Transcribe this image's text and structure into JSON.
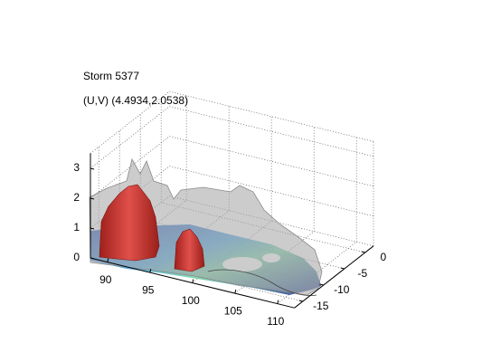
{
  "chart_data": {
    "type": "surface3d",
    "title": "Storm 5377",
    "subtitle": "(U,V) (4.4934,2.0538)",
    "xlim": [
      88,
      112
    ],
    "ylim": [
      -17,
      2
    ],
    "zlim": [
      0,
      3.5
    ],
    "xticks": [
      90,
      95,
      100,
      105,
      110
    ],
    "yticks": [
      -15,
      -10,
      -5,
      0
    ],
    "zticks": [
      0,
      1,
      2,
      3
    ],
    "grid": true
  }
}
